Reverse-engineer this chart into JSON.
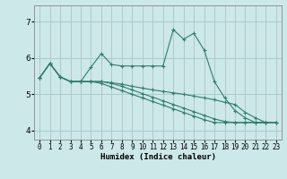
{
  "xlabel": "Humidex (Indice chaleur)",
  "background_color": "#cce8e8",
  "line_color": "#2e7d6e",
  "grid_color": "#aacccc",
  "xlim": [
    -0.5,
    23.5
  ],
  "ylim": [
    3.75,
    7.45
  ],
  "yticks": [
    4,
    5,
    6,
    7
  ],
  "xticks": [
    0,
    1,
    2,
    3,
    4,
    5,
    6,
    7,
    8,
    9,
    10,
    11,
    12,
    13,
    14,
    15,
    16,
    17,
    18,
    19,
    20,
    21,
    22,
    23
  ],
  "lines": [
    {
      "x": [
        0,
        1,
        2,
        3,
        4,
        5,
        6,
        7,
        8,
        9,
        10,
        11,
        12,
        13,
        14,
        15,
        16,
        17,
        18,
        19,
        20,
        21,
        22
      ],
      "y": [
        5.45,
        5.85,
        5.48,
        5.35,
        5.35,
        5.75,
        6.12,
        5.82,
        5.78,
        5.78,
        5.78,
        5.78,
        5.78,
        6.78,
        6.52,
        6.68,
        6.22,
        5.35,
        4.9,
        4.55,
        4.35,
        4.22,
        4.22
      ]
    },
    {
      "x": [
        0,
        1,
        2,
        3,
        4,
        5,
        6,
        7,
        8,
        9,
        10,
        11,
        12,
        13,
        14,
        15,
        16,
        17,
        18,
        19,
        20,
        21,
        22,
        23
      ],
      "y": [
        5.45,
        5.85,
        5.48,
        5.35,
        5.35,
        5.35,
        5.35,
        5.32,
        5.28,
        5.22,
        5.17,
        5.12,
        5.08,
        5.04,
        5.0,
        4.95,
        4.9,
        4.85,
        4.78,
        4.72,
        4.5,
        4.35,
        4.22,
        4.22
      ]
    },
    {
      "x": [
        0,
        1,
        2,
        3,
        4,
        5,
        6,
        7,
        8,
        9,
        10,
        11,
        12,
        13,
        14,
        15,
        16,
        17,
        18,
        19,
        20,
        21,
        22,
        23
      ],
      "y": [
        5.45,
        5.85,
        5.48,
        5.35,
        5.35,
        5.35,
        5.35,
        5.3,
        5.22,
        5.12,
        5.02,
        4.92,
        4.82,
        4.72,
        4.62,
        4.52,
        4.42,
        4.32,
        4.25,
        4.22,
        4.22,
        4.22,
        4.22,
        4.22
      ]
    },
    {
      "x": [
        0,
        1,
        2,
        3,
        4,
        5,
        6,
        7,
        8,
        9,
        10,
        11,
        12,
        13,
        14,
        15,
        16,
        17,
        18,
        19,
        20,
        21,
        22,
        23
      ],
      "y": [
        5.45,
        5.85,
        5.48,
        5.35,
        5.35,
        5.35,
        5.3,
        5.2,
        5.1,
        5.0,
        4.9,
        4.8,
        4.7,
        4.6,
        4.5,
        4.4,
        4.3,
        4.22,
        4.22,
        4.22,
        4.22,
        4.22,
        4.22,
        4.22
      ]
    }
  ]
}
